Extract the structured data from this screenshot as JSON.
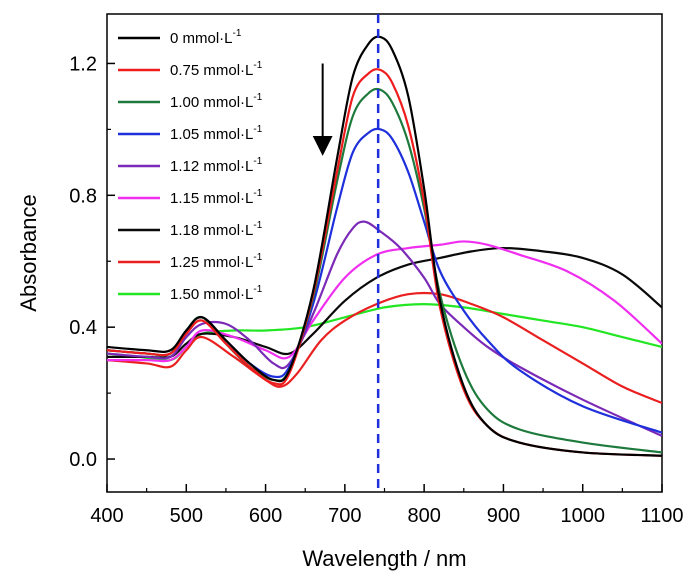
{
  "chart_data": {
    "type": "line",
    "xlabel": "Wavelength / nm",
    "ylabel": "Absorbance",
    "xlim": [
      400,
      1100
    ],
    "ylim": [
      -0.1,
      1.35
    ],
    "xticks": [
      "400",
      "500",
      "600",
      "700",
      "800",
      "900",
      "1000",
      "1100"
    ],
    "yticks": [
      "0.0",
      "0.4",
      "0.8",
      "1.2"
    ],
    "legend_position": "top-left",
    "reference_line": {
      "x": 742,
      "style": "dashed",
      "color": "#1f2fdc"
    },
    "arrow": {
      "x": 672,
      "y_from": 1.2,
      "y_to": 0.95,
      "direction": "down"
    },
    "series": [
      {
        "name": "0 mmol·L",
        "superscript": "-1",
        "color": "#000000",
        "x": [
          400,
          450,
          480,
          500,
          520,
          550,
          580,
          610,
          630,
          660,
          690,
          710,
          730,
          745,
          760,
          780,
          800,
          820,
          850,
          880,
          920,
          1000,
          1100
        ],
        "y": [
          0.34,
          0.33,
          0.33,
          0.39,
          0.43,
          0.36,
          0.29,
          0.24,
          0.27,
          0.51,
          0.91,
          1.16,
          1.26,
          1.28,
          1.24,
          1.1,
          0.82,
          0.48,
          0.22,
          0.1,
          0.05,
          0.02,
          0.01
        ]
      },
      {
        "name": "0.75 mmol·L",
        "superscript": "-1",
        "color": "#ee1c1c",
        "x": [
          400,
          450,
          480,
          500,
          520,
          550,
          580,
          610,
          630,
          660,
          690,
          710,
          730,
          745,
          760,
          780,
          800,
          820,
          850,
          880,
          920,
          1000,
          1100
        ],
        "y": [
          0.33,
          0.32,
          0.32,
          0.38,
          0.42,
          0.35,
          0.28,
          0.23,
          0.26,
          0.5,
          0.87,
          1.1,
          1.17,
          1.18,
          1.14,
          1.01,
          0.78,
          0.46,
          0.21,
          0.1,
          0.05,
          0.02,
          0.01
        ]
      },
      {
        "name": "1.00 mmol·L",
        "superscript": "-1",
        "color": "#1e7a3c",
        "x": [
          400,
          450,
          480,
          500,
          520,
          550,
          580,
          610,
          630,
          660,
          690,
          710,
          730,
          745,
          760,
          780,
          800,
          820,
          850,
          880,
          920,
          1000,
          1100
        ],
        "y": [
          0.33,
          0.32,
          0.32,
          0.39,
          0.43,
          0.35,
          0.28,
          0.24,
          0.27,
          0.49,
          0.84,
          1.04,
          1.11,
          1.12,
          1.08,
          0.96,
          0.76,
          0.5,
          0.27,
          0.15,
          0.09,
          0.05,
          0.02
        ]
      },
      {
        "name": "1.05 mmol·L",
        "superscript": "-1",
        "color": "#1e2fdc",
        "x": [
          400,
          450,
          480,
          500,
          520,
          550,
          580,
          610,
          630,
          660,
          690,
          710,
          730,
          745,
          760,
          780,
          800,
          820,
          850,
          880,
          920,
          1000,
          1100
        ],
        "y": [
          0.33,
          0.32,
          0.32,
          0.39,
          0.43,
          0.36,
          0.29,
          0.25,
          0.28,
          0.47,
          0.76,
          0.93,
          0.99,
          1.0,
          0.97,
          0.87,
          0.72,
          0.57,
          0.45,
          0.36,
          0.27,
          0.16,
          0.08
        ]
      },
      {
        "name": "1.12 mmol·L",
        "superscript": "-1",
        "color": "#7b2ab8",
        "x": [
          400,
          450,
          480,
          500,
          520,
          550,
          580,
          610,
          630,
          660,
          690,
          710,
          725,
          745,
          770,
          800,
          820,
          850,
          880,
          920,
          1000,
          1100
        ],
        "y": [
          0.32,
          0.31,
          0.31,
          0.37,
          0.41,
          0.41,
          0.36,
          0.29,
          0.29,
          0.44,
          0.62,
          0.7,
          0.72,
          0.69,
          0.64,
          0.55,
          0.47,
          0.4,
          0.34,
          0.28,
          0.18,
          0.07
        ]
      },
      {
        "name": "1.15 mmol·L",
        "superscript": "-1",
        "color": "#f02ef0",
        "x": [
          400,
          450,
          480,
          500,
          520,
          560,
          600,
          630,
          660,
          700,
          740,
          780,
          820,
          850,
          880,
          920,
          980,
          1040,
          1100
        ],
        "y": [
          0.3,
          0.3,
          0.3,
          0.34,
          0.39,
          0.37,
          0.33,
          0.31,
          0.42,
          0.55,
          0.62,
          0.64,
          0.65,
          0.66,
          0.65,
          0.62,
          0.57,
          0.48,
          0.35
        ]
      },
      {
        "name": "1.18 mmol·L",
        "superscript": "-1",
        "color": "#0a0a0a",
        "x": [
          400,
          450,
          480,
          500,
          520,
          560,
          600,
          630,
          660,
          700,
          740,
          780,
          820,
          860,
          900,
          950,
          1000,
          1050,
          1100
        ],
        "y": [
          0.31,
          0.31,
          0.31,
          0.35,
          0.38,
          0.37,
          0.34,
          0.32,
          0.38,
          0.48,
          0.55,
          0.59,
          0.61,
          0.63,
          0.64,
          0.63,
          0.61,
          0.56,
          0.46
        ]
      },
      {
        "name": "1.25 mmol·L",
        "superscript": "-1",
        "color": "#ea1f1f",
        "x": [
          400,
          450,
          480,
          500,
          520,
          560,
          600,
          620,
          640,
          670,
          700,
          740,
          780,
          820,
          860,
          900,
          950,
          1000,
          1050,
          1100
        ],
        "y": [
          0.3,
          0.29,
          0.28,
          0.33,
          0.37,
          0.31,
          0.24,
          0.22,
          0.26,
          0.36,
          0.42,
          0.47,
          0.5,
          0.5,
          0.47,
          0.43,
          0.36,
          0.29,
          0.22,
          0.17
        ]
      },
      {
        "name": "1.50 mmol·L",
        "superscript": "-1",
        "color": "#22e622",
        "x": [
          400,
          440,
          480,
          500,
          520,
          560,
          600,
          650,
          700,
          750,
          800,
          850,
          900,
          950,
          1000,
          1050,
          1100
        ],
        "y": [
          0.32,
          0.31,
          0.3,
          0.34,
          0.38,
          0.39,
          0.39,
          0.4,
          0.43,
          0.46,
          0.47,
          0.46,
          0.44,
          0.42,
          0.4,
          0.37,
          0.34
        ]
      }
    ]
  }
}
